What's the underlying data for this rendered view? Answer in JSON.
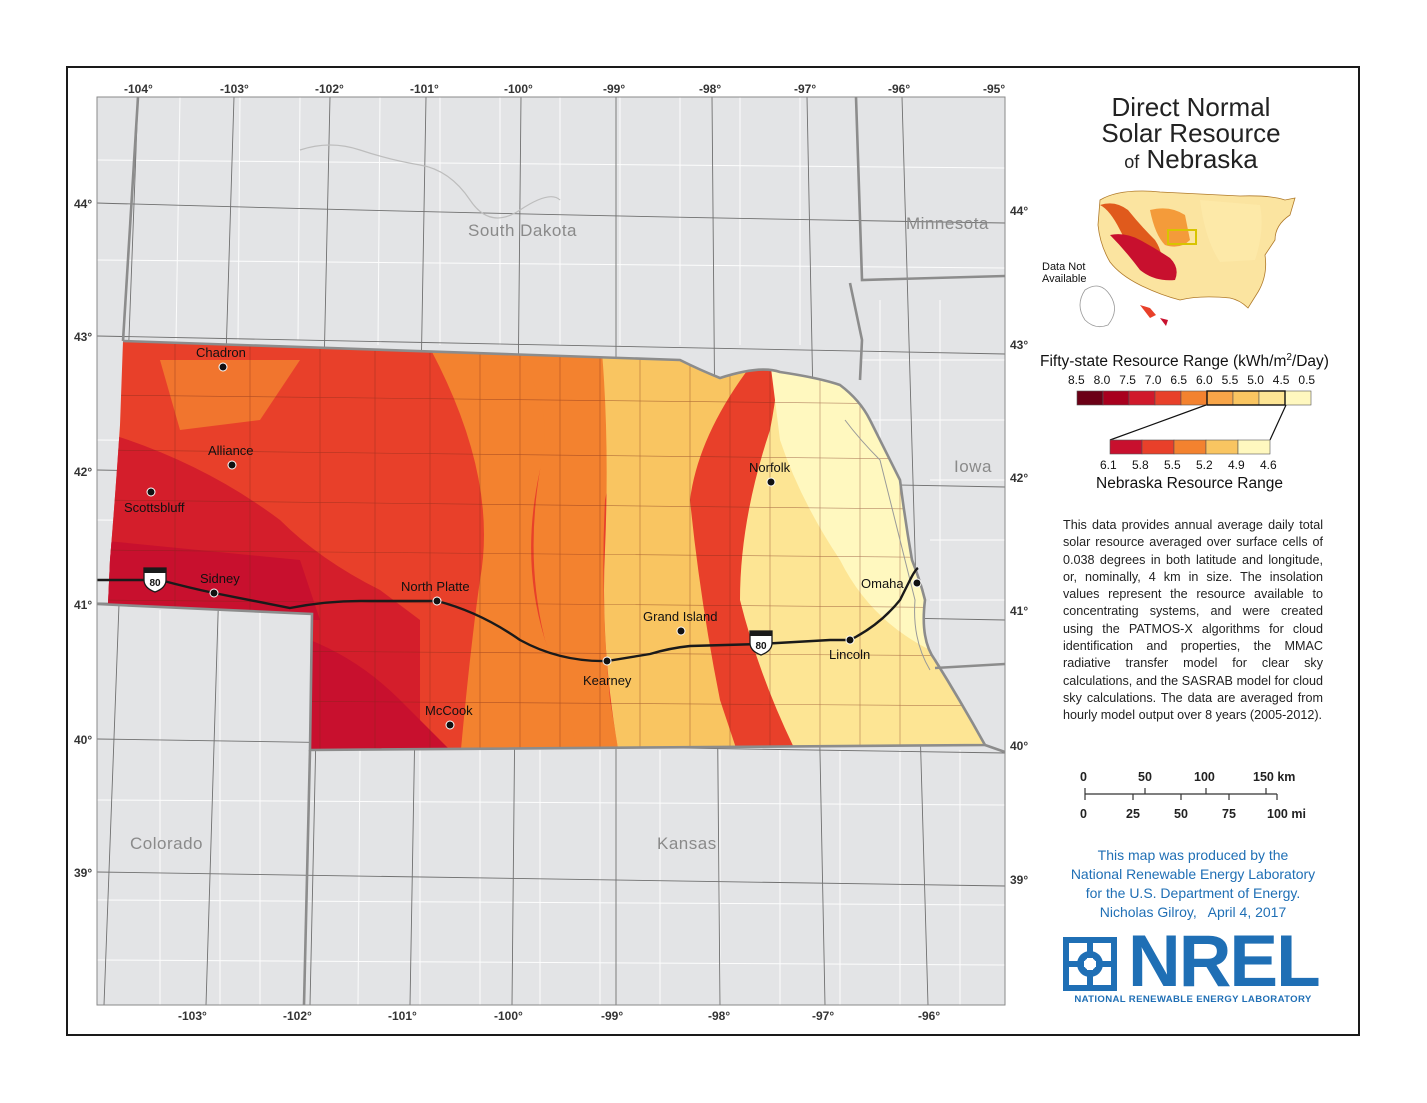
{
  "title": {
    "line1": "Direct Normal",
    "line2": "Solar Resource",
    "line3_of": "of",
    "line3_state": "Nebraska"
  },
  "top_longitudes": [
    "-104°",
    "-103°",
    "-102°",
    "-101°",
    "-100°",
    "-99°",
    "-98°",
    "-97°",
    "-96°",
    "-95°"
  ],
  "bottom_longitudes": [
    "-103°",
    "-102°",
    "-101°",
    "-100°",
    "-99°",
    "-98°",
    "-97°",
    "-96°"
  ],
  "left_latitudes": [
    "44°",
    "43°",
    "42°",
    "41°",
    "40°",
    "39°"
  ],
  "right_latitudes": [
    "44°",
    "43°",
    "42°",
    "41°",
    "40°",
    "39°"
  ],
  "states": {
    "south_dakota": "South Dakota",
    "minnesota": "Minnesota",
    "iowa": "Iowa",
    "colorado": "Colorado",
    "kansas": "Kansas"
  },
  "cities": [
    {
      "name": "Chadron"
    },
    {
      "name": "Alliance"
    },
    {
      "name": "Scottsbluff"
    },
    {
      "name": "Sidney"
    },
    {
      "name": "North Platte"
    },
    {
      "name": "McCook"
    },
    {
      "name": "Kearney"
    },
    {
      "name": "Grand Island"
    },
    {
      "name": "Norfolk"
    },
    {
      "name": "Omaha"
    },
    {
      "name": "Lincoln"
    }
  ],
  "interstate": "80",
  "inset": {
    "data_not_available": "Data Not Available"
  },
  "legend": {
    "fifty_title_pre": "Fifty-state Resource Range (kWh/m",
    "fifty_title_sup": "2",
    "fifty_title_post": "/Day)",
    "fifty_ticks": [
      "8.5",
      "8.0",
      "7.5",
      "7.0",
      "6.5",
      "6.0",
      "5.5",
      "5.0",
      "4.5",
      "0.5"
    ],
    "fifty_colors": [
      "#6b0016",
      "#a8001e",
      "#d0192b",
      "#e8402a",
      "#f3822f",
      "#f7a548",
      "#f9c561",
      "#fde594",
      "#fff8bf"
    ],
    "ne_ticks": [
      "6.1",
      "5.8",
      "5.5",
      "5.2",
      "4.9",
      "4.6"
    ],
    "ne_colors": [
      "#c8102e",
      "#e8402a",
      "#f3822f",
      "#f9c561",
      "#fff8bf"
    ],
    "ne_title": "Nebraska Resource Range"
  },
  "description": "This data provides annual average daily total solar resource averaged over surface cells of 0.038 degrees in both latitude and longitude, or, nominally, 4 km in size. The insolation values represent the resource available to concentrating systems, and were created using the PATMOS-X algorithms for cloud identification and properties, the MMAC radiative transfer model for clear sky calculations, and the SASRAB model for cloud sky calculations. The data are averaged from hourly model output over 8 years (2005-2012).",
  "scale": {
    "km": [
      "0",
      "50",
      "100",
      "150 km"
    ],
    "mi": [
      "0",
      "25",
      "50",
      "75",
      "100 mi"
    ]
  },
  "credit": {
    "line1": "This map was produced by the",
    "line2": "National Renewable Energy Laboratory",
    "line3": "for the U.S. Department of Energy.",
    "line4": "Nicholas Gilroy,   April 4, 2017"
  },
  "logo": {
    "word": "NREL",
    "subtitle": "NATIONAL RENEWABLE ENERGY LABORATORY"
  }
}
